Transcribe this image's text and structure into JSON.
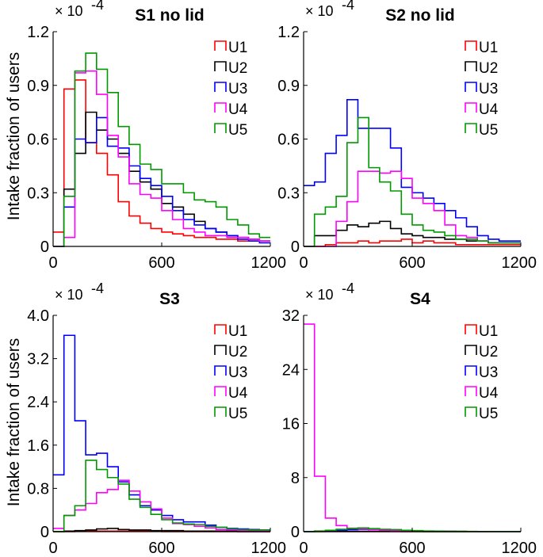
{
  "figure": {
    "ylabel": "Intake fraction of users",
    "scale_label": "× 10",
    "scale_exp": "-4"
  },
  "colors": {
    "U1": "#ff0000",
    "U2": "#000000",
    "U3": "#0000ff",
    "U4": "#ff00ff",
    "U5": "#009900"
  },
  "chart_data": [
    {
      "id": "s1",
      "type": "histogram-step",
      "title": "S1 no lid",
      "xlim": [
        0,
        1200
      ],
      "ylim": [
        0,
        1.2
      ],
      "xticks": [
        0,
        600,
        1200
      ],
      "yticks": [
        0,
        0.3,
        0.6,
        0.9,
        1.2
      ],
      "ytick_labels": [
        "0",
        "0.3",
        "0.6",
        "0.9",
        "1.2"
      ],
      "bin_width": 60,
      "legend": [
        "U1",
        "U2",
        "U3",
        "U4",
        "U5"
      ],
      "series": [
        {
          "name": "U1",
          "values": [
            0.08,
            0.88,
            0.93,
            0.58,
            0.52,
            0.4,
            0.25,
            0.17,
            0.13,
            0.1,
            0.08,
            0.07,
            0.06,
            0.05,
            0.05,
            0.04,
            0.04,
            0.03,
            0.03,
            0.03
          ]
        },
        {
          "name": "U2",
          "values": [
            0.0,
            0.32,
            0.52,
            0.75,
            0.65,
            0.6,
            0.52,
            0.42,
            0.36,
            0.32,
            0.24,
            0.22,
            0.18,
            0.14,
            0.1,
            0.08,
            0.06,
            0.05,
            0.04,
            0.03
          ]
        },
        {
          "name": "U3",
          "values": [
            0.0,
            0.22,
            0.6,
            0.58,
            0.72,
            0.56,
            0.55,
            0.45,
            0.38,
            0.34,
            0.28,
            0.2,
            0.15,
            0.12,
            0.1,
            0.08,
            0.06,
            0.04,
            0.03,
            0.02
          ]
        },
        {
          "name": "U4",
          "values": [
            0.0,
            0.05,
            0.97,
            0.98,
            0.85,
            0.62,
            0.5,
            0.35,
            0.29,
            0.27,
            0.2,
            0.15,
            0.1,
            0.08,
            0.06,
            0.06,
            0.05,
            0.05,
            0.04,
            0.03
          ]
        },
        {
          "name": "U5",
          "values": [
            0.0,
            0.28,
            0.98,
            1.08,
            0.99,
            0.86,
            0.67,
            0.57,
            0.46,
            0.43,
            0.35,
            0.35,
            0.3,
            0.26,
            0.25,
            0.22,
            0.15,
            0.12,
            0.07,
            0.05
          ]
        }
      ]
    },
    {
      "id": "s2",
      "type": "histogram-step",
      "title": "S2 no lid",
      "xlim": [
        0,
        1200
      ],
      "ylim": [
        0,
        1.2
      ],
      "xticks": [
        0,
        600,
        1200
      ],
      "yticks": [
        0,
        0.3,
        0.6,
        0.9,
        1.2
      ],
      "ytick_labels": [
        "0",
        "0.3",
        "0.6",
        "0.9",
        "1.2"
      ],
      "bin_width": 60,
      "legend": [
        "U1",
        "U2",
        "U3",
        "U4",
        "U5"
      ],
      "series": [
        {
          "name": "U1",
          "values": [
            0.0,
            0.0,
            0.01,
            0.02,
            0.02,
            0.03,
            0.02,
            0.03,
            0.03,
            0.04,
            0.02,
            0.03,
            0.02,
            0.02,
            0.01,
            0.01,
            0.01,
            0.01,
            0.01,
            0.01
          ]
        },
        {
          "name": "U2",
          "values": [
            0.0,
            0.06,
            0.06,
            0.09,
            0.12,
            0.11,
            0.13,
            0.14,
            0.1,
            0.07,
            0.06,
            0.05,
            0.05,
            0.04,
            0.04,
            0.03,
            0.03,
            0.02,
            0.02,
            0.02
          ]
        },
        {
          "name": "U3",
          "values": [
            0.34,
            0.36,
            0.52,
            0.62,
            0.82,
            0.66,
            0.66,
            0.66,
            0.55,
            0.33,
            0.3,
            0.27,
            0.24,
            0.2,
            0.16,
            0.11,
            0.06,
            0.04,
            0.03,
            0.03
          ]
        },
        {
          "name": "U4",
          "values": [
            0.0,
            0.0,
            0.0,
            0.14,
            0.25,
            0.42,
            0.42,
            0.41,
            0.42,
            0.38,
            0.27,
            0.24,
            0.2,
            0.12,
            0.06,
            0.05,
            0.03,
            0.02,
            0.02,
            0.02
          ]
        },
        {
          "name": "U5",
          "values": [
            0.0,
            0.18,
            0.22,
            0.28,
            0.58,
            0.72,
            0.44,
            0.36,
            0.31,
            0.18,
            0.12,
            0.09,
            0.08,
            0.06,
            0.04,
            0.04,
            0.03,
            0.02,
            0.02,
            0.02
          ]
        }
      ]
    },
    {
      "id": "s3",
      "type": "histogram-step",
      "title": "S3",
      "xlim": [
        0,
        1200
      ],
      "ylim": [
        0,
        4.0
      ],
      "xticks": [
        0,
        600,
        1200
      ],
      "yticks": [
        0,
        0.8,
        1.6,
        2.4,
        3.2,
        4.0
      ],
      "ytick_labels": [
        "0",
        "0.8",
        "1.6",
        "2.4",
        "3.2",
        "4.0"
      ],
      "bin_width": 60,
      "legend": [
        "U1",
        "U2",
        "U3",
        "U4",
        "U5"
      ],
      "series": [
        {
          "name": "U1",
          "values": [
            0.0,
            0.0,
            0.01,
            0.01,
            0.01,
            0.01,
            0.01,
            0.01,
            0.01,
            0.01,
            0.0,
            0.0,
            0.0,
            0.0,
            0.0,
            0.0,
            0.0,
            0.0,
            0.0,
            0.0
          ]
        },
        {
          "name": "U2",
          "values": [
            0.0,
            0.01,
            0.02,
            0.03,
            0.05,
            0.06,
            0.04,
            0.03,
            0.03,
            0.02,
            0.02,
            0.02,
            0.01,
            0.01,
            0.01,
            0.01,
            0.01,
            0.0,
            0.0,
            0.0
          ]
        },
        {
          "name": "U3",
          "values": [
            1.05,
            3.63,
            2.05,
            1.42,
            1.45,
            1.2,
            0.92,
            0.68,
            0.48,
            0.4,
            0.3,
            0.22,
            0.18,
            0.18,
            0.12,
            0.08,
            0.06,
            0.05,
            0.04,
            0.03
          ]
        },
        {
          "name": "U4",
          "values": [
            0.06,
            0.3,
            0.4,
            0.52,
            0.72,
            0.78,
            0.95,
            0.75,
            0.55,
            0.42,
            0.25,
            0.15,
            0.13,
            0.1,
            0.07,
            0.04,
            0.03,
            0.02,
            0.02,
            0.01
          ]
        },
        {
          "name": "U5",
          "values": [
            0.0,
            0.3,
            0.48,
            1.32,
            1.15,
            1.0,
            0.88,
            0.6,
            0.45,
            0.32,
            0.22,
            0.16,
            0.14,
            0.13,
            0.1,
            0.08,
            0.05,
            0.04,
            0.03,
            0.03
          ]
        }
      ]
    },
    {
      "id": "s4",
      "type": "histogram-step",
      "title": "S4",
      "xlim": [
        0,
        1200
      ],
      "ylim": [
        0,
        32
      ],
      "xticks": [
        0,
        600,
        1200
      ],
      "yticks": [
        0,
        8,
        16,
        24,
        32
      ],
      "ytick_labels": [
        "0",
        "8",
        "16",
        "24",
        "32"
      ],
      "bin_width": 60,
      "legend": [
        "U1",
        "U2",
        "U3",
        "U4",
        "U5"
      ],
      "series": [
        {
          "name": "U1",
          "values": [
            0.0,
            0.0,
            0.0,
            0.0,
            0.0,
            0.0,
            0.0,
            0.0,
            0.0,
            0.0,
            0.0,
            0.0,
            0.0,
            0.0,
            0.0,
            0.0,
            0.0,
            0.0,
            0.0,
            0.0
          ]
        },
        {
          "name": "U2",
          "values": [
            0.0,
            0.02,
            0.03,
            0.04,
            0.05,
            0.05,
            0.04,
            0.03,
            0.03,
            0.02,
            0.02,
            0.01,
            0.01,
            0.01,
            0.01,
            0.0,
            0.0,
            0.0,
            0.0,
            0.0
          ]
        },
        {
          "name": "U3",
          "values": [
            0.0,
            0.05,
            0.1,
            0.2,
            0.3,
            0.35,
            0.3,
            0.25,
            0.2,
            0.15,
            0.1,
            0.08,
            0.06,
            0.05,
            0.04,
            0.03,
            0.02,
            0.02,
            0.01,
            0.01
          ]
        },
        {
          "name": "U4",
          "values": [
            30.7,
            8.2,
            2.0,
            0.9,
            0.5,
            0.4,
            0.3,
            0.2,
            0.15,
            0.1,
            0.08,
            0.06,
            0.05,
            0.04,
            0.03,
            0.02,
            0.02,
            0.01,
            0.01,
            0.01
          ]
        },
        {
          "name": "U5",
          "values": [
            0.0,
            0.1,
            0.2,
            0.35,
            0.45,
            0.55,
            0.45,
            0.35,
            0.3,
            0.2,
            0.15,
            0.1,
            0.08,
            0.06,
            0.05,
            0.04,
            0.03,
            0.02,
            0.02,
            0.01
          ]
        }
      ]
    }
  ]
}
